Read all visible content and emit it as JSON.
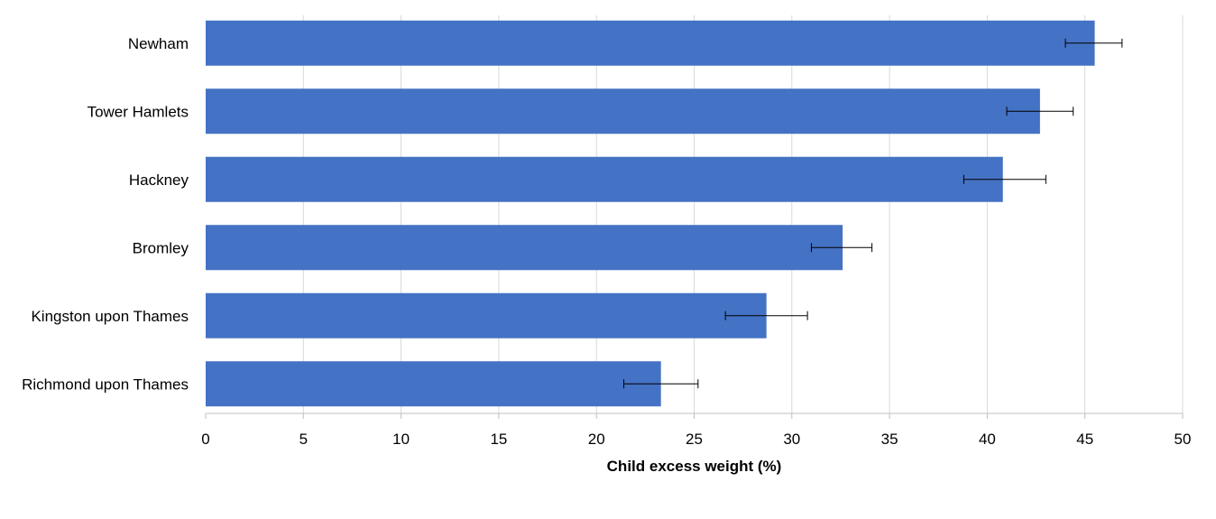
{
  "chart_data": {
    "type": "bar",
    "orientation": "horizontal",
    "categories": [
      "Newham",
      "Tower Hamlets",
      "Hackney",
      "Bromley",
      "Kingston upon Thames",
      "Richmond upon Thames"
    ],
    "values": [
      45.5,
      42.7,
      40.8,
      32.6,
      28.7,
      23.3
    ],
    "error_low": [
      44.0,
      41.0,
      38.8,
      31.0,
      26.6,
      21.4
    ],
    "error_high": [
      46.9,
      44.4,
      43.0,
      34.1,
      30.8,
      25.2
    ],
    "xlabel": "Child excess weight (%)",
    "ylabel": "",
    "xlim": [
      0,
      50
    ],
    "x_ticks": [
      "0",
      "5",
      "10",
      "15",
      "20",
      "25",
      "30",
      "35",
      "40",
      "45",
      "50"
    ],
    "grid": "vertical",
    "legend": "none",
    "bar_color": "#4472C4",
    "gridline_color": "#D9D9D9",
    "axis_color": "#BFBFBF",
    "errorbar_color": "#000000"
  }
}
